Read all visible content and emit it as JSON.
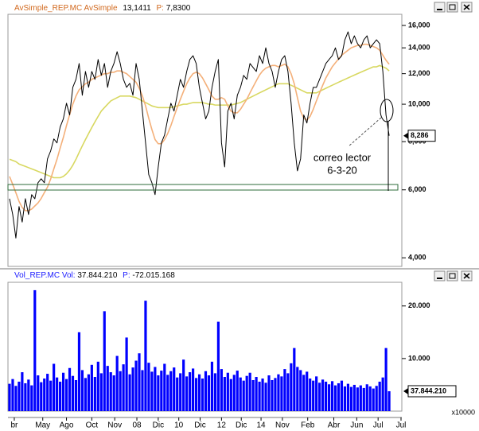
{
  "chart_data": [
    {
      "type": "line",
      "header": {
        "name": "AvSimple_REP.MC",
        "study": "AvSimple",
        "value": "13,1411",
        "p_label": "P:",
        "p_value": "7,8300"
      },
      "log_scale": true,
      "xlim": [
        -0.5,
        124
      ],
      "ylim": [
        3800,
        17100
      ],
      "yticks": [
        {
          "value": 4000,
          "label": "4,000"
        },
        {
          "value": 6000,
          "label": "6,000"
        },
        {
          "value": 8000,
          "label": "8,000"
        },
        {
          "value": 10000,
          "label": "10,000"
        },
        {
          "value": 12000,
          "label": "12,000"
        },
        {
          "value": 14000,
          "label": "14,000"
        },
        {
          "value": 16000,
          "label": "16,000"
        }
      ],
      "last_value_label": {
        "value": 8286,
        "label": "8,286"
      },
      "annotations": [
        "correo lector",
        "6-3-20"
      ],
      "series": [
        {
          "color": "#000000",
          "values": [
            5690,
            5180,
            4500,
            5430,
            4950,
            5690,
            5180,
            5830,
            5690,
            6260,
            6410,
            6260,
            7220,
            7570,
            8130,
            7940,
            8730,
            9160,
            10060,
            9380,
            11060,
            11600,
            12750,
            10550,
            12160,
            11060,
            12160,
            11600,
            13060,
            11880,
            12750,
            11060,
            12160,
            12750,
            13680,
            12750,
            11600,
            11060,
            11330,
            10550,
            12750,
            11600,
            9600,
            7940,
            6570,
            6260,
            5830,
            6880,
            7940,
            8320,
            9160,
            10060,
            9600,
            10550,
            11600,
            11060,
            12160,
            13060,
            13360,
            12750,
            11060,
            10060,
            9160,
            9600,
            11060,
            12160,
            13060,
            7940,
            6880,
            9600,
            10060,
            9160,
            10550,
            11060,
            11880,
            11600,
            12750,
            12450,
            12160,
            13360,
            12750,
            14000,
            12750,
            12160,
            11060,
            12160,
            13060,
            13360,
            12160,
            10060,
            7940,
            6720,
            7220,
            9380,
            8940,
            10060,
            11060,
            11060,
            11600,
            12160,
            12750,
            13060,
            13360,
            14000,
            13060,
            13360,
            14690,
            15400,
            14350,
            15040,
            14350,
            14000,
            14690,
            15040,
            14000,
            14350,
            14690,
            14350,
            12160,
            9380,
            8286
          ]
        },
        {
          "color": "#f4b07a",
          "values": [
            6500,
            6200,
            5900,
            5600,
            5400,
            5300,
            5300,
            5350,
            5450,
            5550,
            5700,
            5900,
            6100,
            6400,
            6800,
            7200,
            7700,
            8200,
            8800,
            9400,
            10000,
            10500,
            10900,
            11100,
            11300,
            11400,
            11600,
            11700,
            11800,
            11900,
            12000,
            12000,
            12100,
            12100,
            12200,
            12200,
            12100,
            12000,
            11800,
            11600,
            11400,
            11000,
            10500,
            9900,
            9200,
            8600,
            8100,
            7900,
            7900,
            8100,
            8400,
            8800,
            9300,
            9800,
            10300,
            10800,
            11300,
            11700,
            12000,
            12100,
            12000,
            11700,
            11300,
            10900,
            10500,
            10300,
            10300,
            10400,
            10300,
            9900,
            9600,
            9500,
            9500,
            9700,
            10000,
            10300,
            10700,
            11100,
            11500,
            11900,
            12200,
            12400,
            12500,
            12600,
            12600,
            12500,
            12600,
            12700,
            12500,
            12000,
            11300,
            10400,
            9600,
            9200,
            9100,
            9300,
            9700,
            10200,
            10700,
            11200,
            11700,
            12100,
            12500,
            12800,
            13100,
            13400,
            13600,
            13800,
            14000,
            14100,
            14200,
            14200,
            14300,
            14300,
            14200,
            14100,
            14000,
            13800,
            13400,
            13000,
            12700
          ]
        },
        {
          "color": "#d8d860",
          "values": [
            7200,
            7150,
            7100,
            7000,
            6950,
            6900,
            6850,
            6800,
            6750,
            6700,
            6650,
            6600,
            6550,
            6500,
            6450,
            6450,
            6450,
            6500,
            6600,
            6750,
            6950,
            7200,
            7500,
            7800,
            8100,
            8400,
            8700,
            9000,
            9300,
            9600,
            9800,
            10000,
            10200,
            10300,
            10400,
            10500,
            10500,
            10500,
            10500,
            10450,
            10400,
            10300,
            10200,
            10100,
            10000,
            9900,
            9850,
            9800,
            9800,
            9800,
            9800,
            9800,
            9850,
            9900,
            9950,
            10000,
            10000,
            10050,
            10100,
            10100,
            10100,
            10100,
            10050,
            10000,
            10000,
            9950,
            9950,
            9950,
            9950,
            9950,
            9950,
            10000,
            10050,
            10100,
            10200,
            10300,
            10400,
            10500,
            10600,
            10700,
            10800,
            10900,
            11000,
            11100,
            11200,
            11300,
            11300,
            11300,
            11300,
            11200,
            11100,
            11000,
            10900,
            10800,
            10700,
            10700,
            10700,
            10700,
            10800,
            10900,
            11000,
            11100,
            11200,
            11300,
            11400,
            11500,
            11600,
            11700,
            11800,
            11900,
            12000,
            12100,
            12200,
            12300,
            12400,
            12500,
            12500,
            12600,
            12500,
            12400,
            12200
          ]
        }
      ]
    },
    {
      "type": "bar",
      "header": {
        "name": "Vol_REP.MC",
        "field": "Vol:",
        "value": "37.844.210",
        "p_label": "P:",
        "p_value": "-72.015.168"
      },
      "unit_label": "x10000",
      "color": "#0000ff",
      "xlim": [
        -0.5,
        124
      ],
      "ylim": [
        0,
        24500
      ],
      "yticks": [
        {
          "value": 10000,
          "label": "10.000"
        },
        {
          "value": 20000,
          "label": "20.000"
        }
      ],
      "last_value_label": {
        "value": 3784.421,
        "label": "37.844.210"
      },
      "xticks": [
        {
          "value": 1.5,
          "label": "br"
        },
        {
          "value": 10.5,
          "label": "May"
        },
        {
          "value": 18,
          "label": "Ago"
        },
        {
          "value": 26,
          "label": "Oct"
        },
        {
          "value": 33.25,
          "label": "Nov"
        },
        {
          "value": 40.25,
          "label": "08"
        },
        {
          "value": 47,
          "label": "Dic"
        },
        {
          "value": 53.5,
          "label": "10"
        },
        {
          "value": 60.25,
          "label": "Dic"
        },
        {
          "value": 67,
          "label": "12"
        },
        {
          "value": 73.25,
          "label": "Dic"
        },
        {
          "value": 79.5,
          "label": "14"
        },
        {
          "value": 86.25,
          "label": "Nov"
        },
        {
          "value": 94.25,
          "label": "Feb"
        },
        {
          "value": 102.5,
          "label": "Abr"
        },
        {
          "value": 109.75,
          "label": "Jun"
        },
        {
          "value": 116.5,
          "label": "Jul"
        },
        {
          "value": 123.75,
          "label": "Jul"
        }
      ],
      "values": [
        5200,
        6100,
        4800,
        5600,
        7400,
        5300,
        6000,
        4900,
        23000,
        6800,
        5500,
        6200,
        7100,
        5800,
        9000,
        6400,
        5600,
        7300,
        6100,
        8200,
        6700,
        5900,
        15000,
        7800,
        6300,
        7000,
        8800,
        6500,
        9400,
        7200,
        19000,
        8600,
        7400,
        6800,
        10500,
        7600,
        8900,
        14000,
        7000,
        8300,
        9600,
        11000,
        7800,
        21000,
        9200,
        7500,
        8400,
        6800,
        7700,
        9000,
        6900,
        7600,
        8300,
        6400,
        7200,
        9800,
        6600,
        7400,
        8100,
        6300,
        7000,
        6200,
        7600,
        6800,
        9400,
        7200,
        17000,
        8000,
        6500,
        7300,
        6100,
        6900,
        7700,
        6400,
        5800,
        6700,
        7300,
        5900,
        6500,
        5600,
        6200,
        5400,
        6800,
        5900,
        6300,
        7000,
        6600,
        8000,
        7200,
        9100,
        12000,
        8400,
        7800,
        6900,
        7500,
        6200,
        5800,
        6600,
        5400,
        6000,
        5600,
        5100,
        5700,
        4900,
        5300,
        5800,
        4700,
        5200,
        4600,
        5000,
        4500,
        4900,
        4400,
        5100,
        4700,
        4300,
        4800,
        5600,
        6400,
        12000,
        3784.421
      ]
    }
  ]
}
